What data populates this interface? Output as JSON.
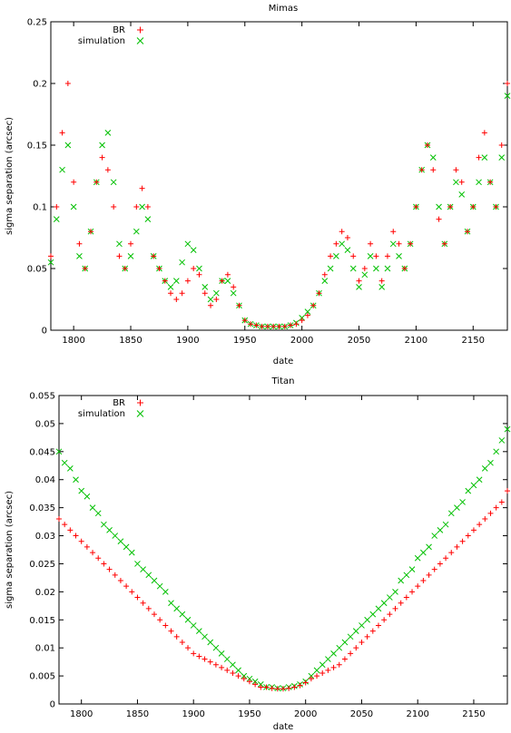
{
  "chart_data": [
    {
      "type": "scatter",
      "title": "Mimas",
      "xlabel": "date",
      "ylabel": "sigma separation (arcsec)",
      "xlim": [
        1780,
        2180
      ],
      "ylim": [
        0,
        0.25
      ],
      "x_ticks": [
        1800,
        1850,
        1900,
        1950,
        2000,
        2050,
        2100,
        2150
      ],
      "y_ticks": [
        0,
        0.05,
        0.1,
        0.15,
        0.2,
        0.25
      ],
      "grid": false,
      "legend_position": "top-left",
      "series": [
        {
          "name": "BR",
          "marker": "plus",
          "color": "#ff0000",
          "x": [
            1780,
            1785,
            1790,
            1795,
            1800,
            1805,
            1810,
            1815,
            1820,
            1825,
            1830,
            1835,
            1840,
            1845,
            1850,
            1855,
            1860,
            1865,
            1870,
            1875,
            1880,
            1885,
            1890,
            1895,
            1900,
            1905,
            1910,
            1915,
            1920,
            1925,
            1930,
            1935,
            1940,
            1945,
            1950,
            1955,
            1960,
            1965,
            1970,
            1975,
            1980,
            1985,
            1990,
            1995,
            2000,
            2005,
            2010,
            2015,
            2020,
            2025,
            2030,
            2035,
            2040,
            2045,
            2050,
            2055,
            2060,
            2065,
            2070,
            2075,
            2080,
            2085,
            2090,
            2095,
            2100,
            2105,
            2110,
            2115,
            2120,
            2125,
            2130,
            2135,
            2140,
            2145,
            2150,
            2155,
            2160,
            2165,
            2170,
            2175,
            2180
          ],
          "y": [
            0.06,
            0.1,
            0.16,
            0.2,
            0.12,
            0.07,
            0.05,
            0.08,
            0.12,
            0.14,
            0.13,
            0.1,
            0.06,
            0.05,
            0.07,
            0.1,
            0.115,
            0.1,
            0.06,
            0.05,
            0.04,
            0.03,
            0.025,
            0.03,
            0.04,
            0.05,
            0.045,
            0.03,
            0.02,
            0.025,
            0.04,
            0.045,
            0.035,
            0.02,
            0.008,
            0.005,
            0.004,
            0.003,
            0.003,
            0.003,
            0.003,
            0.003,
            0.004,
            0.005,
            0.008,
            0.012,
            0.02,
            0.03,
            0.045,
            0.06,
            0.07,
            0.08,
            0.075,
            0.06,
            0.04,
            0.05,
            0.07,
            0.06,
            0.04,
            0.06,
            0.08,
            0.07,
            0.05,
            0.07,
            0.1,
            0.13,
            0.15,
            0.13,
            0.09,
            0.07,
            0.1,
            0.13,
            0.12,
            0.08,
            0.1,
            0.14,
            0.16,
            0.12,
            0.1,
            0.15,
            0.2
          ]
        },
        {
          "name": "simulation",
          "marker": "cross",
          "color": "#00c000",
          "x": [
            1780,
            1785,
            1790,
            1795,
            1800,
            1805,
            1810,
            1815,
            1820,
            1825,
            1830,
            1835,
            1840,
            1845,
            1850,
            1855,
            1860,
            1865,
            1870,
            1875,
            1880,
            1885,
            1890,
            1895,
            1900,
            1905,
            1910,
            1915,
            1920,
            1925,
            1930,
            1935,
            1940,
            1945,
            1950,
            1955,
            1960,
            1965,
            1970,
            1975,
            1980,
            1985,
            1990,
            1995,
            2000,
            2005,
            2010,
            2015,
            2020,
            2025,
            2030,
            2035,
            2040,
            2045,
            2050,
            2055,
            2060,
            2065,
            2070,
            2075,
            2080,
            2085,
            2090,
            2095,
            2100,
            2105,
            2110,
            2115,
            2120,
            2125,
            2130,
            2135,
            2140,
            2145,
            2150,
            2155,
            2160,
            2165,
            2170,
            2175,
            2180
          ],
          "y": [
            0.055,
            0.09,
            0.13,
            0.15,
            0.1,
            0.06,
            0.05,
            0.08,
            0.12,
            0.15,
            0.16,
            0.12,
            0.07,
            0.05,
            0.06,
            0.08,
            0.1,
            0.09,
            0.06,
            0.05,
            0.04,
            0.035,
            0.04,
            0.055,
            0.07,
            0.065,
            0.05,
            0.035,
            0.025,
            0.03,
            0.04,
            0.04,
            0.03,
            0.02,
            0.008,
            0.005,
            0.004,
            0.003,
            0.003,
            0.003,
            0.003,
            0.003,
            0.004,
            0.006,
            0.01,
            0.015,
            0.02,
            0.03,
            0.04,
            0.05,
            0.06,
            0.07,
            0.065,
            0.05,
            0.035,
            0.045,
            0.06,
            0.05,
            0.035,
            0.05,
            0.07,
            0.06,
            0.05,
            0.07,
            0.1,
            0.13,
            0.15,
            0.14,
            0.1,
            0.07,
            0.1,
            0.12,
            0.11,
            0.08,
            0.1,
            0.12,
            0.14,
            0.12,
            0.1,
            0.14,
            0.19
          ]
        }
      ]
    },
    {
      "type": "scatter",
      "title": "Titan",
      "xlabel": "date",
      "ylabel": "sigma separation (arcsec)",
      "xlim": [
        1780,
        2180
      ],
      "ylim": [
        0,
        0.055
      ],
      "x_ticks": [
        1800,
        1850,
        1900,
        1950,
        2000,
        2050,
        2100,
        2150
      ],
      "y_ticks": [
        0,
        0.005,
        0.01,
        0.015,
        0.02,
        0.025,
        0.03,
        0.035,
        0.04,
        0.045,
        0.05,
        0.055
      ],
      "grid": false,
      "legend_position": "top-left",
      "series": [
        {
          "name": "BR",
          "marker": "plus",
          "color": "#ff0000",
          "x": [
            1780,
            1785,
            1790,
            1795,
            1800,
            1805,
            1810,
            1815,
            1820,
            1825,
            1830,
            1835,
            1840,
            1845,
            1850,
            1855,
            1860,
            1865,
            1870,
            1875,
            1880,
            1885,
            1890,
            1895,
            1900,
            1905,
            1910,
            1915,
            1920,
            1925,
            1930,
            1935,
            1940,
            1945,
            1950,
            1955,
            1960,
            1965,
            1970,
            1975,
            1980,
            1985,
            1990,
            1995,
            2000,
            2005,
            2010,
            2015,
            2020,
            2025,
            2030,
            2035,
            2040,
            2045,
            2050,
            2055,
            2060,
            2065,
            2070,
            2075,
            2080,
            2085,
            2090,
            2095,
            2100,
            2105,
            2110,
            2115,
            2120,
            2125,
            2130,
            2135,
            2140,
            2145,
            2150,
            2155,
            2160,
            2165,
            2170,
            2175,
            2180
          ],
          "y": [
            0.033,
            0.032,
            0.031,
            0.03,
            0.029,
            0.028,
            0.027,
            0.026,
            0.025,
            0.024,
            0.023,
            0.022,
            0.021,
            0.02,
            0.019,
            0.018,
            0.017,
            0.016,
            0.015,
            0.014,
            0.013,
            0.012,
            0.011,
            0.01,
            0.009,
            0.0085,
            0.008,
            0.0075,
            0.007,
            0.0065,
            0.006,
            0.0055,
            0.005,
            0.0045,
            0.004,
            0.0035,
            0.003,
            0.003,
            0.0028,
            0.0027,
            0.0027,
            0.0028,
            0.003,
            0.0033,
            0.0038,
            0.0045,
            0.005,
            0.0055,
            0.006,
            0.0065,
            0.007,
            0.008,
            0.009,
            0.01,
            0.011,
            0.012,
            0.013,
            0.014,
            0.015,
            0.016,
            0.017,
            0.018,
            0.019,
            0.02,
            0.021,
            0.022,
            0.023,
            0.024,
            0.025,
            0.026,
            0.027,
            0.028,
            0.029,
            0.03,
            0.031,
            0.032,
            0.033,
            0.034,
            0.035,
            0.036,
            0.038
          ]
        },
        {
          "name": "simulation",
          "marker": "cross",
          "color": "#00c000",
          "x": [
            1780,
            1785,
            1790,
            1795,
            1800,
            1805,
            1810,
            1815,
            1820,
            1825,
            1830,
            1835,
            1840,
            1845,
            1850,
            1855,
            1860,
            1865,
            1870,
            1875,
            1880,
            1885,
            1890,
            1895,
            1900,
            1905,
            1910,
            1915,
            1920,
            1925,
            1930,
            1935,
            1940,
            1945,
            1950,
            1955,
            1960,
            1965,
            1970,
            1975,
            1980,
            1985,
            1990,
            1995,
            2000,
            2005,
            2010,
            2015,
            2020,
            2025,
            2030,
            2035,
            2040,
            2045,
            2050,
            2055,
            2060,
            2065,
            2070,
            2075,
            2080,
            2085,
            2090,
            2095,
            2100,
            2105,
            2110,
            2115,
            2120,
            2125,
            2130,
            2135,
            2140,
            2145,
            2150,
            2155,
            2160,
            2165,
            2170,
            2175,
            2180
          ],
          "y": [
            0.045,
            0.043,
            0.042,
            0.04,
            0.038,
            0.037,
            0.035,
            0.034,
            0.032,
            0.031,
            0.03,
            0.029,
            0.028,
            0.027,
            0.025,
            0.024,
            0.023,
            0.022,
            0.021,
            0.02,
            0.018,
            0.017,
            0.016,
            0.015,
            0.014,
            0.013,
            0.012,
            0.011,
            0.01,
            0.009,
            0.008,
            0.007,
            0.006,
            0.005,
            0.0045,
            0.004,
            0.0035,
            0.003,
            0.003,
            0.0028,
            0.0028,
            0.003,
            0.0032,
            0.0035,
            0.004,
            0.005,
            0.006,
            0.007,
            0.008,
            0.009,
            0.01,
            0.011,
            0.012,
            0.013,
            0.014,
            0.015,
            0.016,
            0.017,
            0.018,
            0.019,
            0.02,
            0.022,
            0.023,
            0.024,
            0.026,
            0.027,
            0.028,
            0.03,
            0.031,
            0.032,
            0.034,
            0.035,
            0.036,
            0.038,
            0.039,
            0.04,
            0.042,
            0.043,
            0.045,
            0.047,
            0.049
          ]
        }
      ]
    }
  ]
}
